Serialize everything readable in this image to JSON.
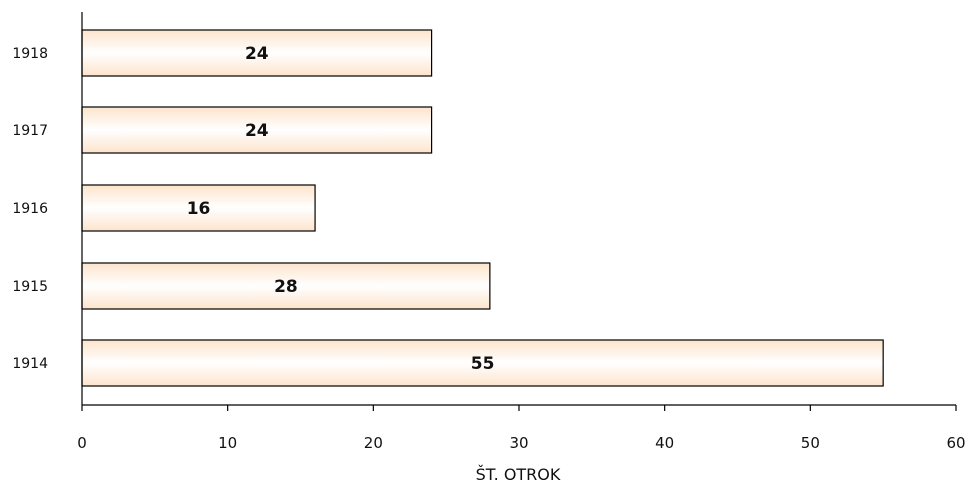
{
  "chart_data": {
    "type": "bar",
    "orientation": "horizontal",
    "categories": [
      "1914",
      "1915",
      "1916",
      "1917",
      "1918"
    ],
    "values": [
      55,
      28,
      16,
      24,
      24
    ],
    "data_labels": [
      "55",
      "28",
      "16",
      "24",
      "24"
    ],
    "xlabel": "ŠT. OTROK",
    "ylabel": "",
    "xlim": [
      0,
      60
    ],
    "x_ticks": [
      0,
      10,
      20,
      30,
      40,
      50,
      60
    ],
    "x_tick_labels": [
      "0",
      "10",
      "20",
      "30",
      "40",
      "50",
      "60"
    ],
    "grid": false,
    "legend": "none",
    "bar_fill_gradient": [
      "#fde4cc",
      "#ffffff"
    ],
    "bar_stroke": "#000000"
  }
}
